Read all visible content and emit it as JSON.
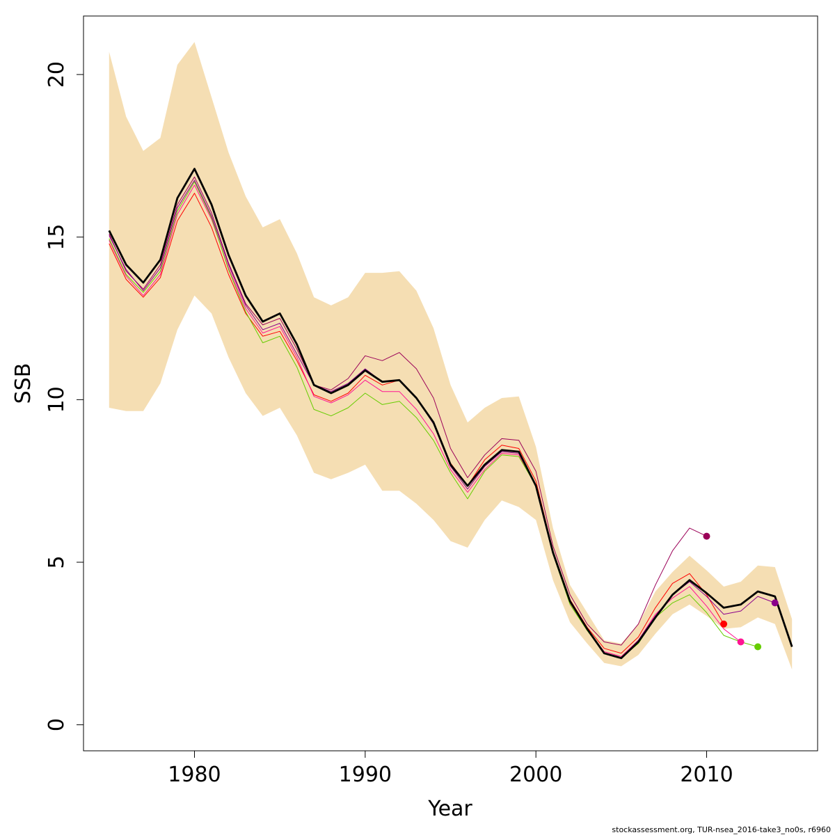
{
  "chart_data": {
    "type": "line",
    "xlabel": "Year",
    "ylabel": "SSB",
    "xlim": [
      1973.5,
      2016.5
    ],
    "ylim": [
      -0.8,
      21.8
    ],
    "x_ticks": [
      1980,
      1990,
      2000,
      2010
    ],
    "y_ticks": [
      0,
      5,
      10,
      15,
      20
    ],
    "x_tick_labels": [
      "1980",
      "1990",
      "2000",
      "2010"
    ],
    "y_tick_labels": [
      "0",
      "5",
      "10",
      "15",
      "20"
    ],
    "grid": false,
    "legend": "none",
    "confidence_band": {
      "color": "#F5DEB3",
      "years": [
        1975,
        1976,
        1977,
        1978,
        1979,
        1980,
        1981,
        1982,
        1983,
        1984,
        1985,
        1986,
        1987,
        1988,
        1989,
        1990,
        1991,
        1992,
        1993,
        1994,
        1995,
        1996,
        1997,
        1998,
        1999,
        2000,
        2001,
        2002,
        2003,
        2004,
        2005,
        2006,
        2007,
        2008,
        2009,
        2010,
        2011,
        2012,
        2013,
        2014,
        2015
      ],
      "upper": [
        20.7,
        18.7,
        17.65,
        18.05,
        20.3,
        21.0,
        19.3,
        17.6,
        16.25,
        15.3,
        15.55,
        14.5,
        13.15,
        12.9,
        13.15,
        13.9,
        13.9,
        13.95,
        13.35,
        12.2,
        10.45,
        9.3,
        9.75,
        10.05,
        10.1,
        8.55,
        6.05,
        4.3,
        3.45,
        2.6,
        2.5,
        3.1,
        4.1,
        4.7,
        5.2,
        4.75,
        4.25,
        4.4,
        4.9,
        4.85,
        3.25
      ],
      "lower": [
        9.75,
        9.65,
        9.65,
        10.5,
        12.15,
        13.2,
        12.65,
        11.3,
        10.2,
        9.5,
        9.75,
        8.9,
        7.75,
        7.55,
        7.75,
        8.0,
        7.2,
        7.2,
        6.8,
        6.3,
        5.65,
        5.45,
        6.3,
        6.9,
        6.7,
        6.3,
        4.45,
        3.15,
        2.5,
        1.9,
        1.8,
        2.15,
        2.8,
        3.4,
        3.7,
        3.35,
        2.95,
        3.0,
        3.3,
        3.1,
        1.7
      ]
    },
    "series": [
      {
        "color": "#000000",
        "years": [
          1975,
          1976,
          1977,
          1978,
          1979,
          1980,
          1981,
          1982,
          1983,
          1984,
          1985,
          1986,
          1987,
          1988,
          1989,
          1990,
          1991,
          1992,
          1993,
          1994,
          1995,
          1996,
          1997,
          1998,
          1999,
          2000,
          2001,
          2002,
          2003,
          2004,
          2005,
          2006,
          2007,
          2008,
          2009,
          2010,
          2011,
          2012,
          2013,
          2014,
          2015
        ],
        "values": [
          15.2,
          14.15,
          13.6,
          14.3,
          16.2,
          17.1,
          16.0,
          14.45,
          13.2,
          12.4,
          12.65,
          11.7,
          10.45,
          10.2,
          10.45,
          10.9,
          10.55,
          10.6,
          10.05,
          9.3,
          8.0,
          7.35,
          8.0,
          8.45,
          8.4,
          7.35,
          5.3,
          3.8,
          2.95,
          2.2,
          2.05,
          2.55,
          3.3,
          4.0,
          4.45,
          4.05,
          3.6,
          3.7,
          4.1,
          3.95,
          2.4
        ]
      },
      {
        "color": "#9B0058",
        "years": [
          1975,
          1976,
          1977,
          1978,
          1979,
          1980,
          1981,
          1982,
          1983,
          1984,
          1985,
          1986,
          1987,
          1988,
          1989,
          1990,
          1991,
          1992,
          1993,
          1994,
          1995,
          1996,
          1997,
          1998,
          1999,
          2000,
          2001,
          2002,
          2003,
          2004,
          2005,
          2006,
          2007,
          2008,
          2009,
          2010
        ],
        "values": [
          15.1,
          13.95,
          13.4,
          14.15,
          16.0,
          16.85,
          15.75,
          14.2,
          12.95,
          12.3,
          12.5,
          11.55,
          10.45,
          10.3,
          10.65,
          11.35,
          11.2,
          11.45,
          10.95,
          10.05,
          8.5,
          7.6,
          8.3,
          8.8,
          8.75,
          7.8,
          5.5,
          4.0,
          3.1,
          2.55,
          2.45,
          3.1,
          4.3,
          5.35,
          6.05,
          5.8
        ]
      },
      {
        "color": "#FF0000",
        "years": [
          1975,
          1976,
          1977,
          1978,
          1979,
          1980,
          1981,
          1982,
          1983,
          1984,
          1985,
          1986,
          1987,
          1988,
          1989,
          1990,
          1991,
          1992,
          1993,
          1994,
          1995,
          1996,
          1997,
          1998,
          1999,
          2000,
          2001,
          2002,
          2003,
          2004,
          2005,
          2006,
          2007,
          2008,
          2009,
          2010,
          2011
        ],
        "values": [
          14.8,
          13.7,
          13.15,
          13.75,
          15.5,
          16.35,
          15.3,
          13.85,
          12.65,
          11.95,
          12.1,
          11.2,
          10.15,
          9.95,
          10.2,
          10.75,
          10.45,
          10.6,
          10.05,
          9.3,
          8.05,
          7.35,
          8.15,
          8.6,
          8.5,
          7.5,
          5.35,
          3.85,
          3.0,
          2.35,
          2.2,
          2.7,
          3.6,
          4.35,
          4.65,
          4.0,
          3.1
        ]
      },
      {
        "color": "#FF1493",
        "years": [
          1975,
          1976,
          1977,
          1978,
          1979,
          1980,
          1981,
          1982,
          1983,
          1984,
          1985,
          1986,
          1987,
          1988,
          1989,
          1990,
          1991,
          1992,
          1993,
          1994,
          1995,
          1996,
          1997,
          1998,
          1999,
          2000,
          2001,
          2002,
          2003,
          2004,
          2005,
          2006,
          2007,
          2008,
          2009,
          2010,
          2011,
          2012
        ],
        "values": [
          14.9,
          13.8,
          13.2,
          13.85,
          15.7,
          16.6,
          15.55,
          14.05,
          12.8,
          12.05,
          12.25,
          11.3,
          10.1,
          9.9,
          10.15,
          10.6,
          10.25,
          10.25,
          9.7,
          8.95,
          7.85,
          7.15,
          7.85,
          8.35,
          8.3,
          7.35,
          5.3,
          3.75,
          2.95,
          2.25,
          2.1,
          2.6,
          3.4,
          3.9,
          4.25,
          3.65,
          2.95,
          2.55
        ]
      },
      {
        "color": "#66CD00",
        "years": [
          1975,
          1976,
          1977,
          1978,
          1979,
          1980,
          1981,
          1982,
          1983,
          1984,
          1985,
          1986,
          1987,
          1988,
          1989,
          1990,
          1991,
          1992,
          1993,
          1994,
          1995,
          1996,
          1997,
          1998,
          1999,
          2000,
          2001,
          2002,
          2003,
          2004,
          2005,
          2006,
          2007,
          2008,
          2009,
          2010,
          2011,
          2012,
          2013
        ],
        "values": [
          14.95,
          13.85,
          13.3,
          13.95,
          15.8,
          16.7,
          15.6,
          14.0,
          12.7,
          11.75,
          11.95,
          11.0,
          9.7,
          9.5,
          9.75,
          10.2,
          9.85,
          9.95,
          9.45,
          8.75,
          7.75,
          6.95,
          7.8,
          8.3,
          8.25,
          7.35,
          5.25,
          3.7,
          2.9,
          2.2,
          2.05,
          2.5,
          3.3,
          3.75,
          4.0,
          3.45,
          2.75,
          2.55,
          2.4
        ]
      },
      {
        "color": "#8B008B",
        "years": [
          1975,
          1976,
          1977,
          1978,
          1979,
          1980,
          1981,
          1982,
          1983,
          1984,
          1985,
          1986,
          1987,
          1988,
          1989,
          1990,
          1991,
          1992,
          1993,
          1994,
          1995,
          1996,
          1997,
          1998,
          1999,
          2000,
          2001,
          2002,
          2003,
          2004,
          2005,
          2006,
          2007,
          2008,
          2009,
          2010,
          2011,
          2012,
          2013,
          2014
        ],
        "values": [
          15.05,
          14.0,
          13.35,
          14.05,
          15.9,
          16.75,
          15.65,
          14.15,
          12.9,
          12.15,
          12.35,
          11.4,
          10.45,
          10.25,
          10.5,
          10.95,
          10.55,
          10.6,
          10.05,
          9.25,
          7.95,
          7.25,
          7.95,
          8.4,
          8.35,
          7.35,
          5.3,
          3.8,
          2.95,
          2.2,
          2.05,
          2.6,
          3.35,
          4.0,
          4.4,
          3.95,
          3.4,
          3.5,
          3.95,
          3.75
        ]
      }
    ],
    "end_points": [
      {
        "year": 2010,
        "value": 5.8,
        "color": "#9B0058"
      },
      {
        "year": 2011,
        "value": 3.1,
        "color": "#FF0000"
      },
      {
        "year": 2012,
        "value": 2.55,
        "color": "#FF1493"
      },
      {
        "year": 2013,
        "value": 2.4,
        "color": "#66CD00"
      },
      {
        "year": 2014,
        "value": 3.75,
        "color": "#8B008B"
      }
    ]
  },
  "footer": {
    "text": "stockassessment.org, TUR-nsea_2016-take3_no0s, r6960"
  }
}
